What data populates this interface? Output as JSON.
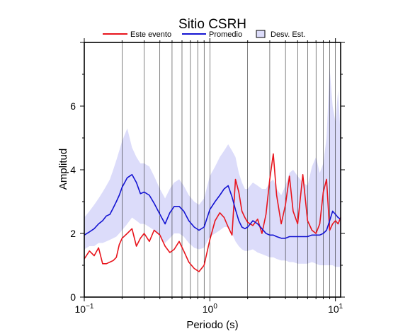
{
  "chart_data": {
    "type": "line",
    "title": "Sitio CSRH",
    "xlabel": "Periodo (s)",
    "ylabel": "Amplitud",
    "xscale": "log",
    "xlim": [
      0.1,
      11
    ],
    "ylim": [
      0,
      8
    ],
    "x_tick_labels": [
      {
        "value": 0.1,
        "base": "10",
        "exp": "−1"
      },
      {
        "value": 1,
        "base": "10",
        "exp": "0"
      },
      {
        "value": 10,
        "base": "10",
        "exp": "1"
      }
    ],
    "y_tick_labels": [
      0,
      2,
      4,
      6
    ],
    "grid": "vertical",
    "legend": {
      "placement": "top",
      "items": [
        {
          "label": "Este evento",
          "kind": "line",
          "color": "#e8141c"
        },
        {
          "label": "Promedio",
          "kind": "line",
          "color": "#1414d2"
        },
        {
          "label": "Desv. Est.",
          "kind": "box",
          "color": "#dcdcfa"
        }
      ]
    },
    "x": [
      0.1,
      0.11,
      0.12,
      0.13,
      0.14,
      0.15,
      0.16,
      0.17,
      0.18,
      0.19,
      0.2,
      0.22,
      0.24,
      0.26,
      0.28,
      0.3,
      0.33,
      0.36,
      0.4,
      0.44,
      0.48,
      0.52,
      0.57,
      0.62,
      0.68,
      0.75,
      0.82,
      0.9,
      1.0,
      1.1,
      1.2,
      1.3,
      1.4,
      1.5,
      1.6,
      1.7,
      1.8,
      1.9,
      2.0,
      2.2,
      2.4,
      2.6,
      2.8,
      3.0,
      3.2,
      3.4,
      3.7,
      4.0,
      4.3,
      4.6,
      5.0,
      5.5,
      6.0,
      6.5,
      7.0,
      7.5,
      8.0,
      8.5,
      9.0,
      9.5,
      10.0,
      10.5,
      11.0
    ],
    "series": [
      {
        "name": "Este evento",
        "color": "#e8141c",
        "values": [
          1.2,
          1.45,
          1.3,
          1.55,
          1.05,
          1.05,
          1.1,
          1.15,
          1.25,
          1.65,
          1.85,
          2.0,
          2.15,
          1.6,
          1.85,
          2.0,
          1.75,
          2.1,
          1.95,
          1.6,
          1.4,
          1.5,
          1.75,
          1.45,
          1.1,
          0.9,
          0.8,
          1.0,
          1.8,
          2.4,
          2.65,
          2.5,
          2.2,
          1.95,
          3.7,
          3.3,
          2.7,
          2.5,
          2.35,
          2.25,
          2.45,
          2.0,
          2.6,
          3.7,
          4.5,
          3.2,
          2.3,
          2.9,
          3.8,
          2.7,
          2.3,
          3.85,
          2.4,
          2.1,
          2.0,
          2.3,
          3.3,
          3.7,
          2.1,
          2.3,
          2.4,
          2.3,
          2.5
        ]
      },
      {
        "name": "Promedio",
        "color": "#1414d2",
        "values": [
          1.95,
          2.05,
          2.15,
          2.3,
          2.4,
          2.55,
          2.6,
          2.8,
          3.0,
          3.2,
          3.45,
          3.75,
          3.85,
          3.6,
          3.25,
          3.3,
          3.2,
          2.95,
          2.6,
          2.3,
          2.65,
          2.85,
          2.85,
          2.7,
          2.4,
          2.2,
          2.1,
          2.2,
          2.75,
          3.0,
          3.2,
          3.4,
          3.5,
          3.15,
          2.75,
          2.4,
          2.2,
          2.15,
          2.2,
          2.4,
          2.3,
          2.15,
          2.0,
          1.95,
          1.95,
          1.9,
          1.85,
          1.85,
          1.9,
          1.9,
          1.9,
          1.9,
          1.9,
          1.95,
          1.95,
          1.95,
          2.0,
          2.1,
          2.4,
          2.7,
          2.6,
          2.5,
          2.45
        ]
      },
      {
        "name": "Desv. Est.",
        "color": "#dcdcfa",
        "kind": "band",
        "upper": [
          2.5,
          2.7,
          2.9,
          3.1,
          3.3,
          3.5,
          3.7,
          4.0,
          4.3,
          4.6,
          4.9,
          5.3,
          4.7,
          4.4,
          4.2,
          4.2,
          4.1,
          3.8,
          3.4,
          3.1,
          3.4,
          3.6,
          3.7,
          3.5,
          3.2,
          3.0,
          2.9,
          3.1,
          3.8,
          4.1,
          4.4,
          4.6,
          4.8,
          4.6,
          4.4,
          3.9,
          3.6,
          3.4,
          3.4,
          3.6,
          3.5,
          3.4,
          3.4,
          3.6,
          3.7,
          3.4,
          3.2,
          3.5,
          3.9,
          4.0,
          3.8,
          3.6,
          3.5,
          4.1,
          4.4,
          3.9,
          4.2,
          5.0,
          7.2,
          6.0,
          5.5,
          6.5,
          5.0
        ],
        "lower": [
          1.5,
          1.6,
          1.6,
          1.7,
          1.7,
          1.75,
          1.8,
          1.85,
          1.9,
          2.0,
          2.1,
          2.3,
          2.5,
          2.4,
          2.3,
          2.3,
          2.2,
          2.1,
          1.9,
          1.7,
          1.85,
          2.0,
          2.0,
          1.9,
          1.7,
          1.55,
          1.5,
          1.55,
          1.9,
          2.0,
          2.1,
          2.2,
          2.2,
          2.0,
          1.75,
          1.6,
          1.5,
          1.45,
          1.45,
          1.5,
          1.4,
          1.35,
          1.3,
          1.25,
          1.25,
          1.2,
          1.15,
          1.15,
          1.1,
          1.1,
          1.05,
          1.05,
          1.05,
          1.1,
          1.05,
          1.0,
          1.0,
          1.0,
          1.0,
          1.0,
          0.95,
          0.95,
          0.95
        ]
      }
    ]
  }
}
